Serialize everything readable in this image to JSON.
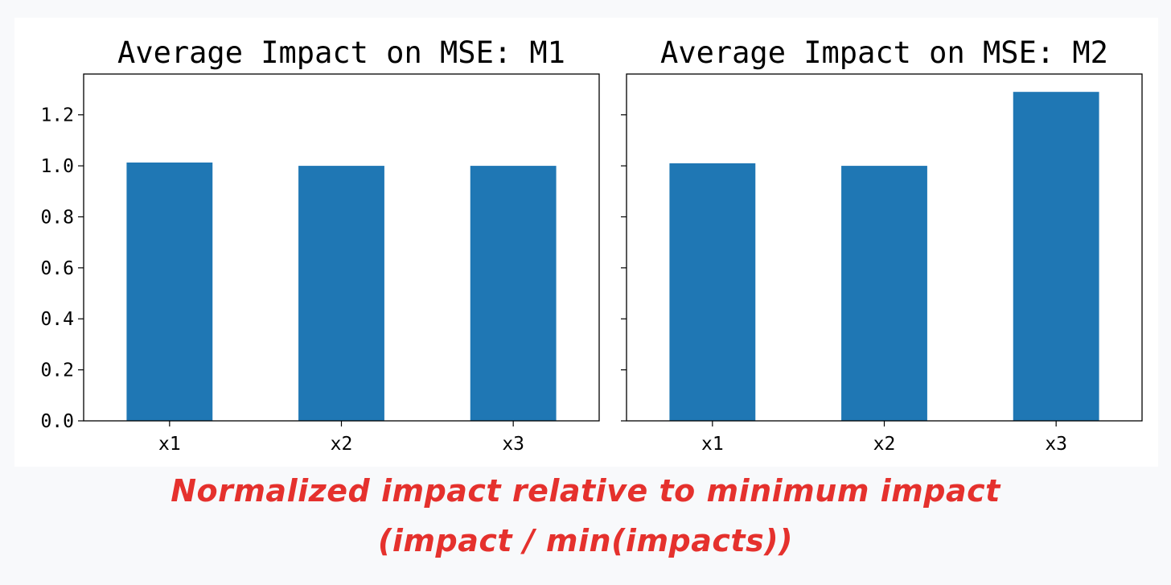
{
  "chart_data": [
    {
      "type": "bar",
      "title": "Average Impact on MSE: M1",
      "categories": [
        "x1",
        "x2",
        "x3"
      ],
      "values": [
        1.013,
        1.0,
        1.0
      ],
      "xlabel": "",
      "ylabel": "",
      "ylim": [
        0,
        1.36
      ],
      "yticks": [
        0.0,
        0.2,
        0.4,
        0.6,
        0.8,
        1.0,
        1.2
      ],
      "ytick_labels": [
        "0.0",
        "0.2",
        "0.4",
        "0.6",
        "0.8",
        "1.0",
        "1.2"
      ],
      "grid": false,
      "bar_color": "#1f77b4"
    },
    {
      "type": "bar",
      "title": "Average Impact on MSE: M2",
      "categories": [
        "x1",
        "x2",
        "x3"
      ],
      "values": [
        1.01,
        1.0,
        1.29
      ],
      "xlabel": "",
      "ylabel": "",
      "ylim": [
        0,
        1.36
      ],
      "yticks": [
        0.0,
        0.2,
        0.4,
        0.6,
        0.8,
        1.0,
        1.2
      ],
      "ytick_labels": [],
      "grid": false,
      "bar_color": "#1f77b4"
    }
  ],
  "caption": {
    "line1": "Normalized impact relative to minimum impact",
    "line2": "(impact / min(impacts))",
    "color": "#e5312d"
  }
}
